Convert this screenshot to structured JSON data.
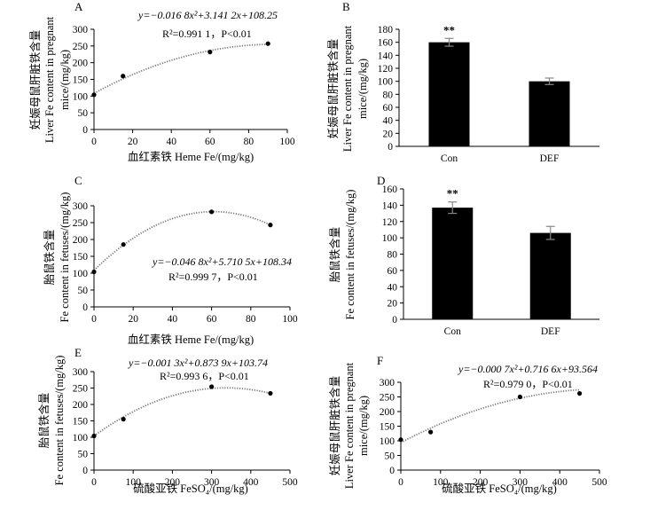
{
  "chart_data": [
    {
      "id": "A",
      "type": "scatter",
      "panel_label": "A",
      "x": [
        0,
        15,
        60,
        90
      ],
      "y": [
        104,
        160,
        232,
        257
      ],
      "fit": {
        "a": -0.0168,
        "b": 3.1412,
        "c": 108.25
      },
      "equation": "y=−0.016 8x²+3.141 2x+108.25",
      "r2_text": "R²=0.991 1，P<0.01",
      "xlabel": "血红素铁 Heme Fe/(mg/kg)",
      "ylabel_cn": "妊娠母鼠肝脏铁含量",
      "ylabel_en": [
        "Liver Fe content in pregnant",
        "mice/(mg/kg)"
      ],
      "xlim": [
        0,
        100
      ],
      "xticks": [
        0,
        20,
        40,
        60,
        80,
        100
      ],
      "ylim": [
        0,
        300
      ],
      "yticks": [
        0,
        50,
        100,
        150,
        200,
        250,
        300
      ]
    },
    {
      "id": "B",
      "type": "bar",
      "panel_label": "B",
      "categories": [
        "Con",
        "DEF"
      ],
      "values": [
        160,
        100
      ],
      "errors": [
        6,
        5
      ],
      "significance": [
        "**",
        ""
      ],
      "ylabel_cn": "妊娠母鼠肝脏铁含量",
      "ylabel_en": [
        "Liver Fe content in pregnant",
        "mice/(mg/kg)"
      ],
      "ylim": [
        0,
        180
      ],
      "yticks": [
        0,
        20,
        40,
        60,
        80,
        100,
        120,
        140,
        160,
        180
      ]
    },
    {
      "id": "C",
      "type": "scatter",
      "panel_label": "C",
      "x": [
        0,
        15,
        60,
        90
      ],
      "y": [
        104,
        185,
        282,
        243
      ],
      "fit": {
        "a": -0.0468,
        "b": 5.7105,
        "c": 108.34
      },
      "equation": "y=−0.046 8x²+5.710 5x+108.34",
      "r2_text": "R²=0.999 7，P<0.01",
      "xlabel": "血红素铁 Heme Fe/(mg/kg)",
      "ylabel_cn": "胎鼠铁含量",
      "ylabel_en": [
        "Fe content in fetuses/(mg/kg)"
      ],
      "xlim": [
        0,
        100
      ],
      "xticks": [
        0,
        20,
        40,
        60,
        80,
        100
      ],
      "ylim": [
        0,
        300
      ],
      "yticks": [
        0,
        50,
        100,
        150,
        200,
        250,
        300
      ]
    },
    {
      "id": "D",
      "type": "bar",
      "panel_label": "D",
      "categories": [
        "Con",
        "DEF"
      ],
      "values": [
        137,
        106
      ],
      "errors": [
        7,
        8
      ],
      "significance": [
        "**",
        ""
      ],
      "ylabel_cn": "胎鼠铁含量",
      "ylabel_en": [
        "Fe content in fetuses/(mg/kg)"
      ],
      "ylim": [
        0,
        160
      ],
      "yticks": [
        0,
        20,
        40,
        60,
        80,
        100,
        120,
        140,
        160
      ]
    },
    {
      "id": "E",
      "type": "scatter",
      "panel_label": "E",
      "x": [
        0,
        75,
        300,
        450
      ],
      "y": [
        104,
        155,
        254,
        234
      ],
      "fit": {
        "a": -0.0013,
        "b": 0.8739,
        "c": 103.74
      },
      "equation": "y=−0.001 3x²+0.873 9x+103.74",
      "r2_text": "R²=0.993 6，P<0.01",
      "xlabel": "硫酸亚铁 FeSO₄/(mg/kg)",
      "ylabel_cn": "胎鼠铁含量",
      "ylabel_en": [
        "Fe content in fetuses/(mg/kg)"
      ],
      "xlim": [
        0,
        500
      ],
      "xticks": [
        0,
        100,
        200,
        300,
        400,
        500
      ],
      "ylim": [
        0,
        300
      ],
      "yticks": [
        0,
        50,
        100,
        150,
        200,
        250,
        300
      ]
    },
    {
      "id": "F",
      "type": "scatter",
      "panel_label": "F",
      "x": [
        0,
        75,
        300,
        450
      ],
      "y": [
        104,
        130,
        250,
        262
      ],
      "fit": {
        "a": -0.0007,
        "b": 0.7166,
        "c": 93.564
      },
      "equation": "y=−0.000 7x²+0.716 6x+93.564",
      "r2_text": "R²=0.979 0，P<0.01",
      "xlabel": "硫酸亚铁 FeSO₄/(mg/kg)",
      "ylabel_cn": "妊娠母鼠肝脏铁含量",
      "ylabel_en": [
        "Liver Fe content in pregnant",
        "mice/(mg/kg)"
      ],
      "xlim": [
        0,
        500
      ],
      "xticks": [
        0,
        100,
        200,
        300,
        400,
        500
      ],
      "ylim": [
        0,
        300
      ],
      "yticks": [
        0,
        50,
        100,
        150,
        200,
        250,
        300
      ]
    }
  ]
}
